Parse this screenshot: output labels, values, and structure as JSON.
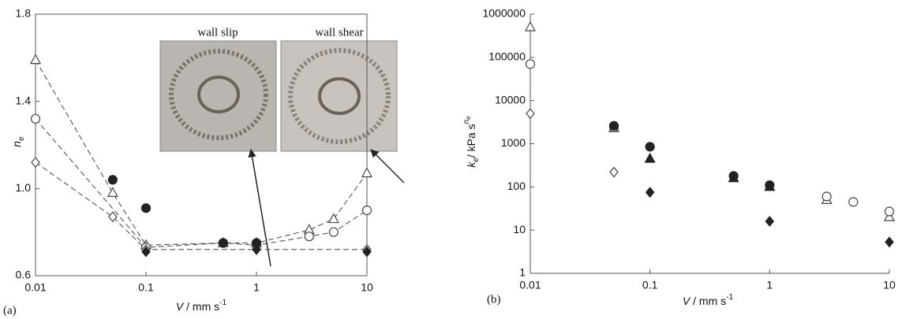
{
  "chart_data": [
    {
      "type": "scatter",
      "panel": "(a)",
      "xscale": "log",
      "yscale": "linear",
      "xlabel": {
        "var": "V",
        "unit": "/ mm s",
        "exp": "-1"
      },
      "ylabel": {
        "base": "n",
        "sub": "e"
      },
      "xlim": [
        0.01,
        10
      ],
      "xticks": [
        0.01,
        0.1,
        1,
        10
      ],
      "ylim": [
        0.6,
        1.8
      ],
      "yticks": [
        0.6,
        {
          "value": 1,
          "label": "1.0"
        },
        1.4,
        1.8
      ],
      "annotations": [
        "wall slip",
        "wall shear"
      ],
      "series": [
        {
          "marker": "triangle",
          "filled": false,
          "line": "dashed",
          "color": "#444",
          "x": [
            0.01,
            0.05,
            0.1,
            0.5,
            1,
            3,
            5,
            10
          ],
          "values": [
            1.59,
            0.98,
            0.74,
            0.75,
            0.75,
            0.81,
            0.86,
            1.07
          ]
        },
        {
          "marker": "circle",
          "filled": false,
          "line": "dashed",
          "color": "#444",
          "x": [
            0.01,
            0.1,
            0.5,
            1,
            3,
            5,
            10
          ],
          "values": [
            1.32,
            0.73,
            0.75,
            0.74,
            0.78,
            0.8,
            0.9
          ]
        },
        {
          "marker": "diamond",
          "filled": false,
          "line": "dashed",
          "color": "#444",
          "x": [
            0.01,
            0.05,
            0.1,
            1,
            10
          ],
          "values": [
            1.12,
            0.87,
            0.72,
            0.72,
            0.72
          ]
        },
        {
          "marker": "diamond",
          "filled": true,
          "color": "#222",
          "x": [
            0.1,
            1,
            10
          ],
          "values": [
            0.71,
            0.72,
            0.71
          ]
        },
        {
          "marker": "circle",
          "filled": true,
          "color": "#222",
          "x": [
            0.05,
            0.1,
            0.5,
            1
          ],
          "values": [
            1.04,
            0.91,
            0.75,
            0.75
          ]
        }
      ]
    },
    {
      "type": "scatter",
      "panel": "(b)",
      "xscale": "log",
      "yscale": "log",
      "xlabel": {
        "var": "V",
        "unit": "/ mm s",
        "exp": "-1"
      },
      "ylabel": {
        "base": "k",
        "sub": "e",
        "unit": "/ kPa s",
        "exp": "n",
        "exp_sub": "e"
      },
      "xlim": [
        0.01,
        10
      ],
      "xticks": [
        0.01,
        0.1,
        1,
        10
      ],
      "ylim": [
        1,
        1000000
      ],
      "yticks": [
        1,
        10,
        100,
        1000,
        10000,
        100000,
        1000000
      ],
      "series": [
        {
          "marker": "triangle",
          "filled": false,
          "color": "#444",
          "x": [
            0.01,
            0.05,
            3,
            10
          ],
          "values": [
            500000,
            2300,
            50,
            20
          ]
        },
        {
          "marker": "circle",
          "filled": false,
          "color": "#444",
          "x": [
            0.01,
            0.05,
            3,
            5,
            10
          ],
          "values": [
            70000,
            2400,
            60,
            45,
            27
          ]
        },
        {
          "marker": "diamond",
          "filled": false,
          "color": "#444",
          "x": [
            0.01,
            0.05
          ],
          "values": [
            5000,
            220
          ]
        },
        {
          "marker": "circle",
          "filled": true,
          "color": "#222",
          "x": [
            0.05,
            0.1,
            0.5,
            1
          ],
          "values": [
            2600,
            850,
            180,
            110
          ]
        },
        {
          "marker": "triangle",
          "filled": true,
          "color": "#222",
          "x": [
            0.1,
            0.5,
            1
          ],
          "values": [
            450,
            160,
            100
          ]
        },
        {
          "marker": "diamond",
          "filled": true,
          "color": "#222",
          "x": [
            0.1,
            1,
            10
          ],
          "values": [
            75,
            16,
            5.3
          ]
        }
      ]
    }
  ]
}
